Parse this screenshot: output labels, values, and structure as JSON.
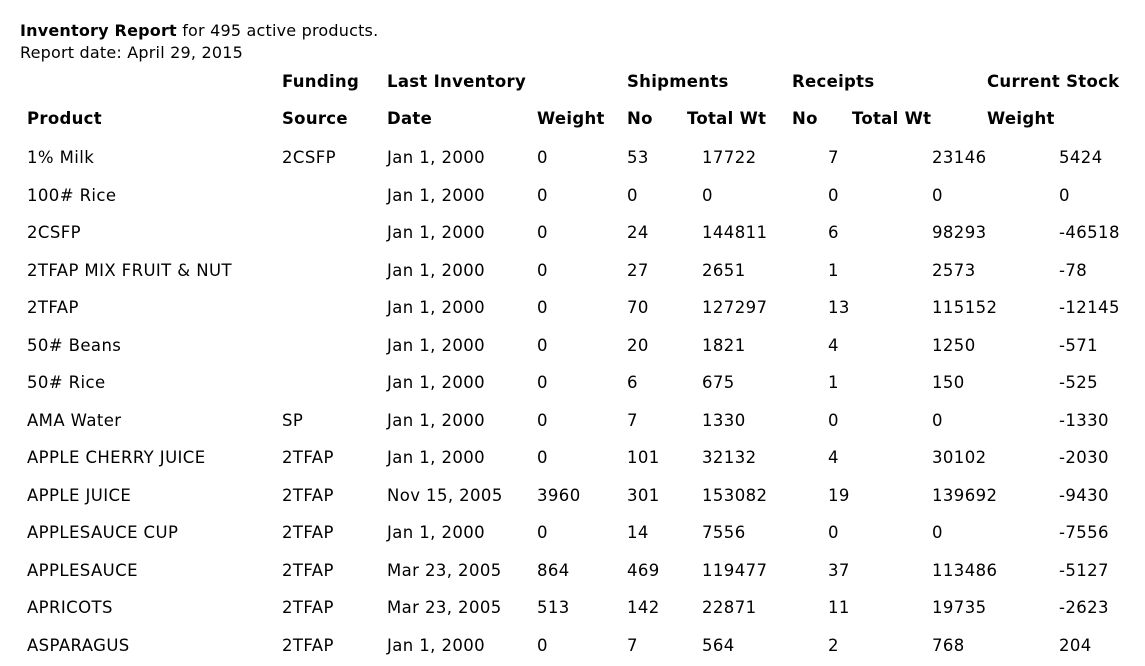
{
  "header": {
    "title": "Inventory Report",
    "title_suffix": " for 495 active products.",
    "report_date": "Report date: April 29, 2015"
  },
  "columns": {
    "group": {
      "funding": "Funding",
      "last_inventory": "Last Inventory",
      "shipments": "Shipments",
      "receipts": "Receipts",
      "current_stock": "Current Stock"
    },
    "sub": {
      "product": "Product",
      "source": "Source",
      "date": "Date",
      "weight": "Weight",
      "ship_no": "No",
      "ship_total": "Total Wt",
      "rec_no": "No",
      "rec_total": "Total Wt",
      "stock_weight": "Weight"
    }
  },
  "rows": [
    [
      "1% Milk",
      "2CSFP",
      "Jan 1, 2000",
      "0",
      "53",
      "17722",
      "7",
      "23146",
      "5424"
    ],
    [
      "100# Rice",
      "",
      "Jan 1, 2000",
      "0",
      "0",
      "0",
      "0",
      "0",
      "0"
    ],
    [
      "2CSFP",
      "",
      "Jan 1, 2000",
      "0",
      "24",
      "144811",
      "6",
      "98293",
      "-46518"
    ],
    [
      "2TFAP MIX FRUIT & NUT",
      "",
      "Jan 1, 2000",
      "0",
      "27",
      "2651",
      "1",
      "2573",
      "-78"
    ],
    [
      "2TFAP",
      "",
      "Jan 1, 2000",
      "0",
      "70",
      "127297",
      "13",
      "115152",
      "-12145"
    ],
    [
      "50# Beans",
      "",
      "Jan 1, 2000",
      "0",
      "20",
      "1821",
      "4",
      "1250",
      "-571"
    ],
    [
      "50# Rice",
      "",
      "Jan 1, 2000",
      "0",
      "6",
      "675",
      "1",
      "150",
      "-525"
    ],
    [
      "AMA Water",
      "SP",
      "Jan 1, 2000",
      "0",
      "7",
      "1330",
      "0",
      "0",
      "-1330"
    ],
    [
      "APPLE CHERRY JUICE",
      "2TFAP",
      "Jan 1, 2000",
      "0",
      "101",
      "32132",
      "4",
      "30102",
      "-2030"
    ],
    [
      "APPLE JUICE",
      "2TFAP",
      "Nov 15, 2005",
      "3960",
      "301",
      "153082",
      "19",
      "139692",
      "-9430"
    ],
    [
      "APPLESAUCE CUP",
      "2TFAP",
      "Jan 1, 2000",
      "0",
      "14",
      "7556",
      "0",
      "0",
      "-7556"
    ],
    [
      "APPLESAUCE",
      "2TFAP",
      "Mar 23, 2005",
      "864",
      "469",
      "119477",
      "37",
      "113486",
      "-5127"
    ],
    [
      "APRICOTS",
      "2TFAP",
      "Mar 23, 2005",
      "513",
      "142",
      "22871",
      "11",
      "19735",
      "-2623"
    ],
    [
      "ASPARAGUS",
      "2TFAP",
      "Jan 1, 2000",
      "0",
      "7",
      "564",
      "2",
      "768",
      "204"
    ]
  ]
}
